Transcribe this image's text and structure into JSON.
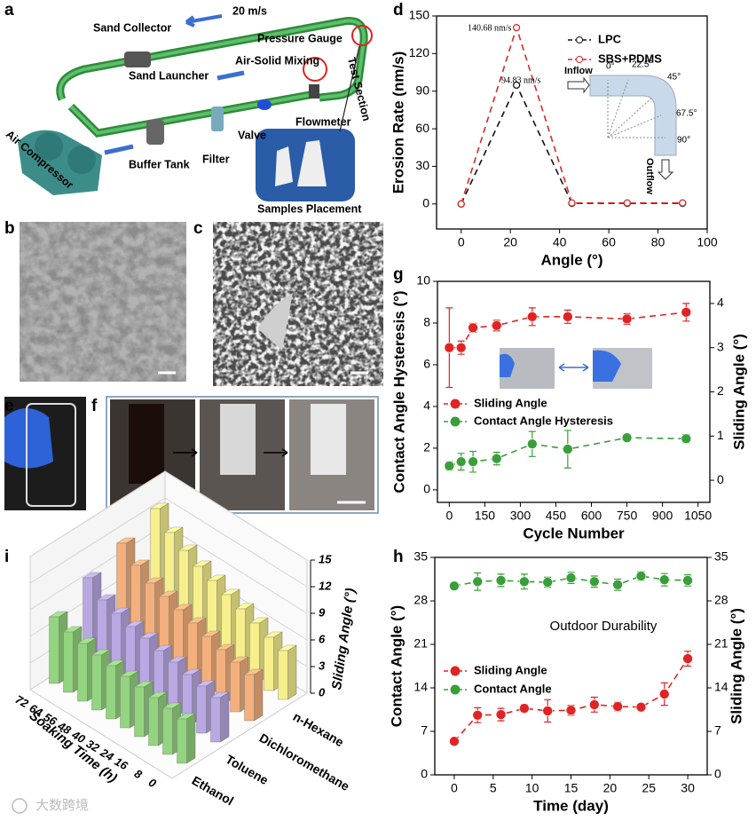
{
  "panels": {
    "labels": [
      "a",
      "b",
      "c",
      "d",
      "e",
      "f",
      "g",
      "h",
      "i"
    ]
  },
  "schematic": {
    "speed": "20 m/s",
    "components": [
      "Sand Collector",
      "Pressure Gauge",
      "Air-Solid Mixing",
      "Sand Launcher",
      "Test Section",
      "Flowmeter",
      "Valve",
      "Filter",
      "Buffer Tank",
      "Air Compressor",
      "Samples Placement"
    ]
  },
  "watermark": "大数跨境",
  "chart_data": [
    {
      "type": "line",
      "x_label": "Angle (°)",
      "y_label": "Erosion Rate (nm/s)",
      "x": [
        0,
        22.5,
        45,
        67.5,
        90
      ],
      "series": [
        {
          "name": "LPC",
          "color": "#111111",
          "values": [
            0,
            94.83,
            0.5,
            0.5,
            0.5
          ]
        },
        {
          "name": "SBS+PDMS",
          "color": "#d42a2a",
          "values": [
            0,
            140.68,
            0.8,
            0.8,
            0.8
          ]
        }
      ],
      "annotations": [
        "140.68 nm/s",
        "94.83 nm/s"
      ],
      "inset": {
        "inflow": "Inflow",
        "outflow": "Outflow",
        "angles": [
          "0°",
          "22.5°",
          "45°",
          "67.5°",
          "90°"
        ]
      },
      "xlim": [
        -10,
        100
      ],
      "xticks": [
        0,
        20,
        40,
        60,
        80,
        100
      ],
      "ylim": [
        -20,
        150
      ],
      "yticks": [
        0,
        30,
        60,
        90,
        120,
        150
      ],
      "legend": "upper right"
    },
    {
      "type": "line",
      "x_label": "Cycle Number",
      "y_label": "Contact Angle Hysteresis (°)",
      "y2_label": "Sliding Angle (°)",
      "x": [
        0,
        50,
        100,
        200,
        350,
        500,
        750,
        1000
      ],
      "series": [
        {
          "name": "Sliding Angle",
          "color": "#e02424",
          "axis": "y2",
          "values": [
            3.0,
            3.0,
            3.45,
            3.5,
            3.7,
            3.7,
            3.65,
            3.8
          ],
          "errors": [
            0.9,
            0.15,
            0.1,
            0.12,
            0.2,
            0.15,
            0.12,
            0.2
          ]
        },
        {
          "name": "Contact Angle Hysteresis",
          "color": "#3a9e3a",
          "values": [
            1.15,
            1.35,
            1.35,
            1.5,
            2.2,
            1.95,
            2.5,
            2.45
          ],
          "errors": [
            0.2,
            0.4,
            0.5,
            0.3,
            0.6,
            0.9,
            0.15,
            0.2
          ]
        }
      ],
      "xlim": [
        -50,
        1100
      ],
      "xticks": [
        0,
        150,
        300,
        450,
        600,
        750,
        900,
        1050
      ],
      "ylim": [
        -0.6,
        10
      ],
      "yticks": [
        0,
        2,
        4,
        6,
        8,
        10
      ],
      "y2lim": [
        -0.5,
        4.5
      ],
      "y2ticks": [
        0,
        1,
        2,
        3,
        4
      ],
      "legend": "center left"
    },
    {
      "type": "line",
      "x_label": "Time (day)",
      "y_label": "Contact Angle (°)",
      "y2_label": "Sliding Angle (°)",
      "annotation": "Outdoor Durability",
      "x": [
        0,
        3,
        6,
        9,
        12,
        15,
        18,
        21,
        24,
        27,
        30
      ],
      "series": [
        {
          "name": "Sliding Angle",
          "color": "#e02424",
          "axis": "y2",
          "values": [
            5.4,
            9.6,
            9.7,
            10.7,
            10.3,
            10.4,
            11.3,
            11.0,
            10.9,
            13.0,
            18.7
          ],
          "errors": [
            0.5,
            1.2,
            1.0,
            0.6,
            1.8,
            0.8,
            1.2,
            0.7,
            0.5,
            1.8,
            1.2
          ]
        },
        {
          "name": "Contact Angle",
          "color": "#3a9e3a",
          "values": [
            30.4,
            31.1,
            31.3,
            31.1,
            31.0,
            31.7,
            31.1,
            30.6,
            32.0,
            31.4,
            31.3
          ],
          "errors": [
            0.5,
            1.4,
            1.0,
            1.2,
            0.8,
            0.9,
            0.9,
            0.9,
            0.7,
            1.0,
            0.9
          ]
        }
      ],
      "xlim": [
        -2.5,
        32.5
      ],
      "xticks": [
        0,
        5,
        10,
        15,
        20,
        25,
        30
      ],
      "ylim": [
        0,
        35
      ],
      "yticks": [
        0,
        7,
        14,
        21,
        28,
        35
      ],
      "y2lim": [
        0,
        35
      ],
      "y2ticks": [
        0,
        7,
        14,
        21,
        28,
        35
      ],
      "legend": "center left"
    },
    {
      "type": "bar3d",
      "x_label": "Soaking Time (h)",
      "y_label": "Sliding Angle (°)",
      "x": [
        0,
        8,
        16,
        24,
        32,
        40,
        48,
        56,
        64,
        72
      ],
      "series": [
        {
          "name": "Ethanol",
          "color": "#94d37f",
          "values": [
            5.0,
            5.2,
            5.4,
            5.6,
            5.8,
            6.0,
            6.2,
            6.5,
            6.8,
            7.5
          ]
        },
        {
          "name": "Toluene",
          "color": "#b9a8e2",
          "values": [
            5.0,
            5.3,
            5.6,
            6.0,
            6.3,
            6.7,
            7.0,
            7.5,
            8.0,
            9.5
          ]
        },
        {
          "name": "Dichloromethane",
          "color": "#f4b07c",
          "values": [
            5.2,
            5.6,
            6.0,
            6.5,
            7.0,
            7.5,
            8.0,
            8.5,
            9.5,
            11.0
          ]
        },
        {
          "name": "n-Hexane",
          "color": "#f6ef8c",
          "values": [
            5.5,
            6.0,
            6.6,
            7.2,
            7.8,
            8.4,
            9.0,
            9.8,
            10.8,
            12.5
          ]
        }
      ],
      "ylim": [
        0,
        15
      ],
      "yticks": [
        0,
        3,
        6,
        9,
        12,
        15
      ]
    }
  ]
}
